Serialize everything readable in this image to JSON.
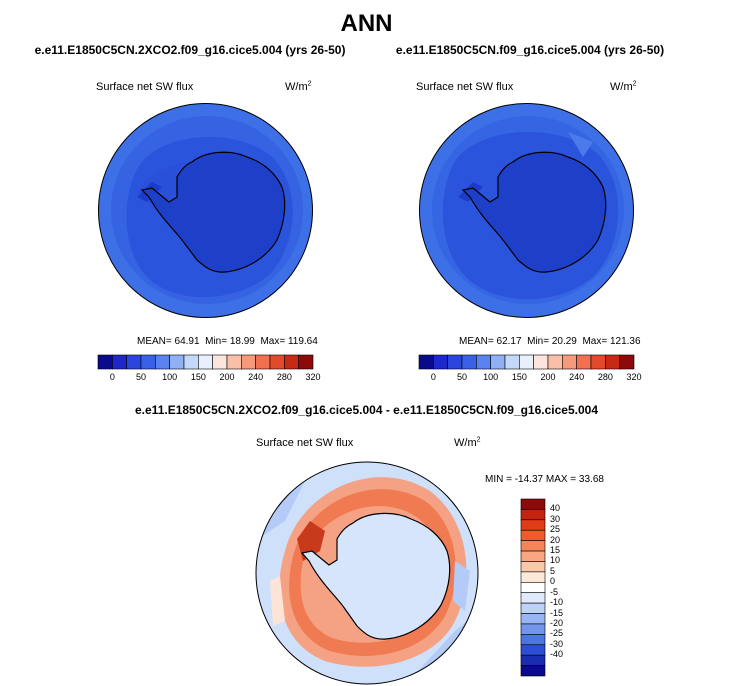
{
  "header": {
    "title": "ANN"
  },
  "panels": [
    {
      "case": "e.e11.E1850C5CN.2XCO2.f09_g16.cice5.004 (yrs 26-50)",
      "variable": "Surface net SW flux",
      "units_base": "W/m",
      "units_exp": "2",
      "stats": {
        "mean_label": "MEAN=",
        "mean": "64.91",
        "min_label": "Min=",
        "min": "18.99",
        "max_label": "Max=",
        "max": "119.64"
      }
    },
    {
      "case": "e.e11.E1850C5CN.f09_g16.cice5.004 (yrs 26-50)",
      "variable": "Surface net SW flux",
      "units_base": "W/m",
      "units_exp": "2",
      "stats": {
        "mean_label": "MEAN=",
        "mean": "62.17",
        "min_label": "Min=",
        "min": "20.29",
        "max_label": "Max=",
        "max": "121.36"
      }
    }
  ],
  "abs_colorbar": {
    "colors": [
      "#0a0a8c",
      "#1e28c8",
      "#2c46dc",
      "#3a60e8",
      "#5a82f0",
      "#8fb0f5",
      "#c4d8fa",
      "#e9f0fd",
      "#fde4dc",
      "#f9c0a8",
      "#f79a7c",
      "#f0704f",
      "#e24a2c",
      "#c72a14",
      "#8c0a0a"
    ],
    "ticks": [
      "0",
      "50",
      "100",
      "150",
      "200",
      "240",
      "280",
      "320"
    ]
  },
  "diff_panel": {
    "case": "e.e11.E1850C5CN.2XCO2.f09_g16.cice5.004 - e.e11.E1850C5CN.f09_g16.cice5.004",
    "variable": "Surface net SW flux",
    "units_base": "W/m",
    "units_exp": "2",
    "stats": "MIN = -14.37 MAX =  33.68"
  },
  "diff_colorbar": {
    "colors": [
      "#8c0a0a",
      "#c22410",
      "#e03c18",
      "#f25a2a",
      "#f78458",
      "#f9a682",
      "#fcc8ac",
      "#fde8da",
      "#ffffff",
      "#dfeafc",
      "#bcd2f8",
      "#97b6f2",
      "#7196ec",
      "#4c74e2",
      "#2c4ed4",
      "#1a2cb0",
      "#0a0a8c"
    ],
    "ticks": [
      "40",
      "30",
      "25",
      "20",
      "15",
      "10",
      "5",
      "0",
      "-5",
      "-10",
      "-15",
      "-20",
      "-25",
      "-30",
      "-40"
    ]
  }
}
